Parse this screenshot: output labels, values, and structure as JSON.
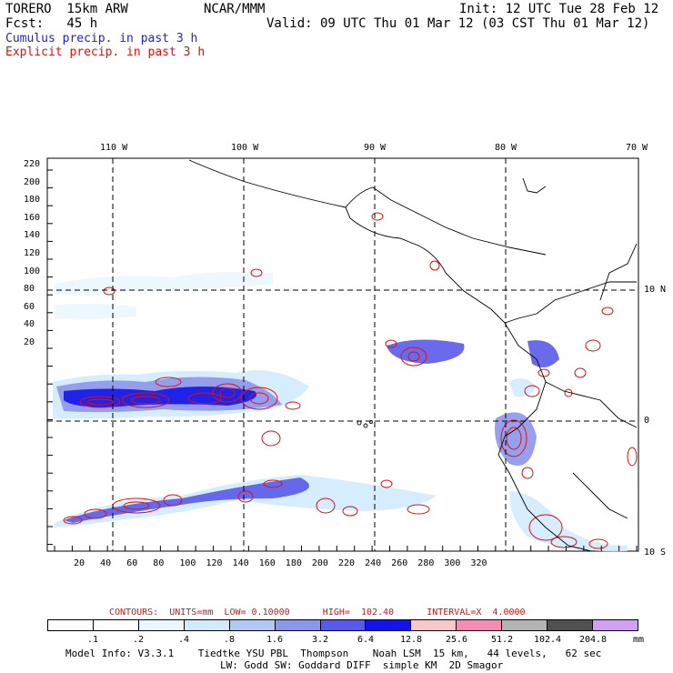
{
  "header": {
    "model": "TORERO  15km ARW",
    "org": "NCAR/MMM",
    "init": "Init: 12 UTC Tue 28 Feb 12",
    "fcst": "Fcst:   45 h",
    "valid": "Valid: 09 UTC Thu 01 Mar 12 (03 CST Thu 01 Mar 12)",
    "line1": "Cumulus precip. in past 3 h",
    "line2": "Explicit precip. in past 3 h"
  },
  "map": {
    "top_lon_labels": [
      "110 W",
      "100 W",
      "90 W",
      "80 W",
      "70 W"
    ],
    "right_lat_labels": [
      "10 N",
      "0",
      "10 S"
    ],
    "left_y_labels": [
      "220",
      "200",
      "180",
      "160",
      "140",
      "120",
      "100",
      "80",
      "60",
      "40",
      "20"
    ],
    "bottom_x_labels": [
      "20",
      "40",
      "60",
      "80",
      "100",
      "120",
      "140",
      "160",
      "180",
      "200",
      "220",
      "240",
      "260",
      "280",
      "300",
      "320"
    ]
  },
  "colorbar": {
    "colors": [
      "#ffffff",
      "#ffffff",
      "#eaf6ff",
      "#d2eaff",
      "#b4c8f4",
      "#8c96ec",
      "#5a5aea",
      "#1414e6",
      "#f6c8c8",
      "#f48cb4",
      "#b4b4b4",
      "#505050",
      "#d2a0f0"
    ],
    "labels": [
      ".1",
      ".2",
      ".4",
      ".8",
      "1.6",
      "3.2",
      "6.4",
      "12.8",
      "25.6",
      "51.2",
      "102.4",
      "204.8"
    ],
    "unit": "mm"
  },
  "contours": {
    "label": "CONTOURS:  UNITS=mm  LOW= 0.10000      HIGH=  102.40      INTERVAL=X  4.0000"
  },
  "footer": {
    "line1": "Model Info: V3.3.1    Tiedtke YSU PBL  Thompson    Noah LSM  15 km,   44 levels,   62 sec",
    "line2": "LW: Godd SW: Goddard DIFF  simple KM  2D Smagor"
  }
}
